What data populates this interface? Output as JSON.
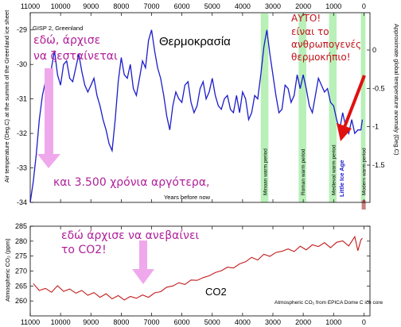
{
  "colors": {
    "temp_line": "#1c1ccc",
    "co2_line": "#c21a1a",
    "warm_band": "#b8f0b8",
    "pink_arrow": "#f0a8ec",
    "red_arrow": "#e01010",
    "annotation_pink": "#b0209a",
    "annotation_red": "#c0141a"
  },
  "chart_data": [
    {
      "type": "line",
      "title": "Θερμοκρασία",
      "subtitle": "GISP 2, Greenland",
      "xlabel": "Years before now",
      "ylabel": "Air temperature (Deg.C) at the summit of the Greenland ice sheet",
      "ylabel_right": "Approximate global temperature anomaly (Deg.C)",
      "xlim": [
        11000,
        -200
      ],
      "ylim": [
        -34,
        -28.5
      ],
      "x_ticks": [
        11000,
        10000,
        9000,
        8000,
        7000,
        6000,
        5000,
        4000,
        3000,
        2000,
        1000,
        0
      ],
      "y_ticks": [
        -34,
        -33,
        -32,
        -31,
        -30,
        -29
      ],
      "y_ticks_right": [
        -1.5,
        -1,
        -0.5,
        0
      ],
      "warm_periods": [
        {
          "label": "Minoan warm period",
          "from": 3400,
          "to": 3150
        },
        {
          "label": "Roman warm period",
          "from": 2150,
          "to": 1900
        },
        {
          "label": "Medieval warm period",
          "from": 1150,
          "to": 900
        },
        {
          "label": "Modern warm period",
          "from": 100,
          "to": -50
        }
      ],
      "little_ice_age_label": "Little Ice Age",
      "series": [
        {
          "x": [
            11000,
            10900,
            10800,
            10700,
            10600,
            10500,
            10400,
            10300,
            10200,
            10100,
            10000,
            9900,
            9800,
            9700,
            9600,
            9500,
            9400,
            9300,
            9200,
            9100,
            9000,
            8900,
            8800,
            8700,
            8600,
            8500,
            8400,
            8300,
            8200,
            8100,
            8000,
            7900,
            7800,
            7700,
            7600,
            7500,
            7400,
            7300,
            7200,
            7100,
            7000,
            6900,
            6800,
            6700,
            6600,
            6500,
            6400,
            6300,
            6200,
            6100,
            6000,
            5900,
            5800,
            5700,
            5600,
            5500,
            5400,
            5300,
            5200,
            5100,
            5000,
            4900,
            4800,
            4700,
            4600,
            4500,
            4400,
            4300,
            4200,
            4100,
            4000,
            3900,
            3800,
            3700,
            3600,
            3500,
            3400,
            3300,
            3200,
            3100,
            3000,
            2900,
            2800,
            2700,
            2600,
            2500,
            2400,
            2300,
            2200,
            2100,
            2000,
            1900,
            1800,
            1700,
            1600,
            1500,
            1400,
            1300,
            1200,
            1100,
            1000,
            900,
            800,
            700,
            600,
            500,
            400,
            300,
            200,
            100,
            50
          ],
          "values": [
            -34.0,
            -33.4,
            -32.6,
            -31.6,
            -30.9,
            -30.5,
            -30.8,
            -30.1,
            -29.6,
            -30.3,
            -30.6,
            -30.0,
            -29.9,
            -30.4,
            -30.5,
            -30.1,
            -29.7,
            -30.2,
            -30.6,
            -30.8,
            -30.6,
            -30.4,
            -30.9,
            -31.2,
            -31.6,
            -31.9,
            -32.3,
            -32.5,
            -31.6,
            -30.5,
            -29.8,
            -30.3,
            -30.4,
            -30.0,
            -30.7,
            -30.9,
            -30.4,
            -29.9,
            -30.1,
            -29.3,
            -29.0,
            -29.6,
            -30.1,
            -30.4,
            -30.9,
            -31.5,
            -31.9,
            -31.2,
            -30.8,
            -31.0,
            -31.1,
            -30.6,
            -30.5,
            -31.1,
            -31.4,
            -31.2,
            -30.7,
            -30.5,
            -31.0,
            -30.8,
            -30.4,
            -30.9,
            -31.2,
            -31.3,
            -31.0,
            -30.9,
            -31.3,
            -31.4,
            -30.9,
            -31.4,
            -30.8,
            -31.0,
            -31.6,
            -31.4,
            -30.9,
            -31.0,
            -30.3,
            -29.5,
            -29.0,
            -29.7,
            -30.3,
            -30.9,
            -31.4,
            -31.3,
            -30.6,
            -30.7,
            -31.1,
            -30.9,
            -30.3,
            -30.7,
            -30.3,
            -30.7,
            -31.2,
            -31.4,
            -30.9,
            -30.4,
            -30.6,
            -30.8,
            -30.7,
            -31.1,
            -31.2,
            -31.6,
            -31.9,
            -31.4,
            -31.8,
            -32.0,
            -31.6,
            -32.0,
            -31.9,
            -31.9,
            -31.6
          ]
        }
      ]
    },
    {
      "type": "line",
      "title": "CO2",
      "subtitle": "Atmospheric CO₂ from EPICA Dome C ice core",
      "xlabel": "",
      "ylabel": "Atmospheric CO₂ (ppm)",
      "xlim": [
        11000,
        -200
      ],
      "ylim": [
        255,
        285
      ],
      "x_ticks": [
        11000,
        10000,
        9000,
        8000,
        7000,
        6000,
        5000,
        4000,
        3000,
        2000,
        1000,
        0
      ],
      "y_ticks": [
        260,
        265,
        270,
        275,
        280,
        285
      ],
      "series": [
        {
          "x": [
            10900,
            10700,
            10500,
            10300,
            10100,
            9900,
            9700,
            9500,
            9300,
            9100,
            8900,
            8700,
            8500,
            8300,
            8100,
            7900,
            7700,
            7500,
            7300,
            7100,
            6900,
            6700,
            6500,
            6300,
            6100,
            5900,
            5700,
            5500,
            5300,
            5100,
            4900,
            4700,
            4500,
            4300,
            4100,
            3900,
            3700,
            3500,
            3300,
            3100,
            2900,
            2700,
            2500,
            2300,
            2100,
            1900,
            1700,
            1500,
            1300,
            1100,
            900,
            700,
            500,
            300,
            200,
            100,
            50
          ],
          "values": [
            265.8,
            263.5,
            264.2,
            262.9,
            265.1,
            263.2,
            264.0,
            262.6,
            263.5,
            261.9,
            262.8,
            261.2,
            262.4,
            260.7,
            261.8,
            260.3,
            261.5,
            260.9,
            262.0,
            261.2,
            262.7,
            263.1,
            264.6,
            265.0,
            266.1,
            265.5,
            267.0,
            266.9,
            267.8,
            268.4,
            269.5,
            270.1,
            271.3,
            271.0,
            272.4,
            273.1,
            274.6,
            273.7,
            275.6,
            274.9,
            276.2,
            276.6,
            277.4,
            276.5,
            278.3,
            277.1,
            278.8,
            278.2,
            279.5,
            277.8,
            279.6,
            280.1,
            278.4,
            281.5,
            276.8,
            280.4,
            281.0
          ]
        }
      ]
    }
  ],
  "annotations": {
    "start_warming": "εδώ, άρχισε\nνα ζεσταίνεται",
    "later": "και 3.500 χρόνια αργότερα,",
    "co2_rise": "εδώ άρχισε να ανεβαίνει\nτο CO2!",
    "this_one": "ΑΥΤΟ!\nείναι το\nανθρωπογενές\nθερμοκήπιο!"
  }
}
